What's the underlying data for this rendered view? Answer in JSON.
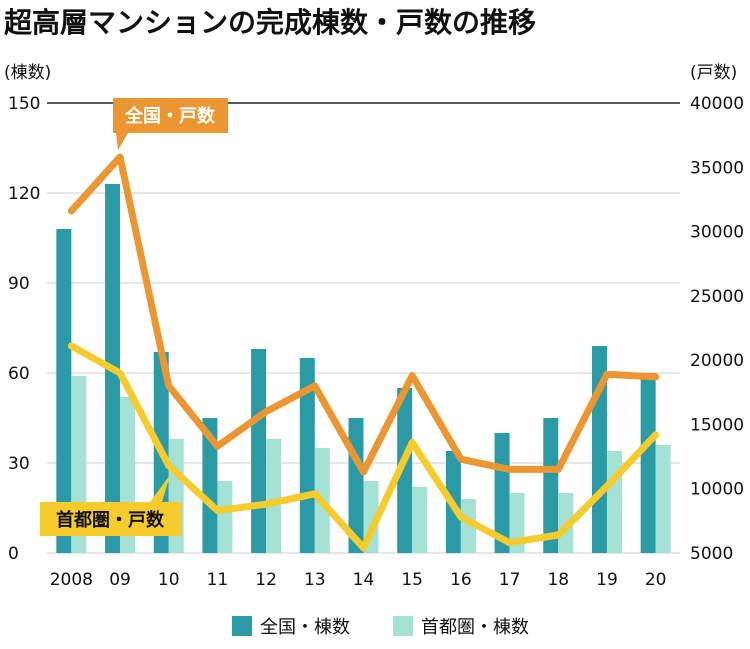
{
  "chart_data": {
    "type": "bar+line",
    "title": "超高層マンションの完成棟数・戸数の推移",
    "left_axis_label": "(棟数)",
    "right_axis_label": "(戸数)",
    "categories": [
      "2008",
      "09",
      "10",
      "11",
      "12",
      "13",
      "14",
      "15",
      "16",
      "17",
      "18",
      "19",
      "20"
    ],
    "left_ylim": [
      0,
      150
    ],
    "left_ticks": [
      0,
      30,
      60,
      90,
      120,
      150
    ],
    "right_ylim": [
      5000,
      40000
    ],
    "right_ticks": [
      5000,
      10000,
      15000,
      20000,
      25000,
      30000,
      35000,
      40000
    ],
    "bar_series": [
      {
        "name": "全国・棟数",
        "color": "#2a9ba6",
        "values": [
          108,
          123,
          67,
          45,
          68,
          65,
          45,
          55,
          34,
          40,
          45,
          69,
          60
        ]
      },
      {
        "name": "首都圏・棟数",
        "color": "#a3e2d5",
        "values": [
          59,
          52,
          38,
          24,
          38,
          35,
          24,
          22,
          18,
          20,
          20,
          34,
          36
        ]
      }
    ],
    "line_series": [
      {
        "name": "全国・戸数",
        "color": "#eb9630",
        "values": [
          31600,
          35800,
          18000,
          13300,
          16000,
          18000,
          11300,
          18800,
          12300,
          11500,
          11500,
          18900,
          18700
        ]
      },
      {
        "name": "首都圏・戸数",
        "color": "#f5cc2c",
        "values": [
          21100,
          19000,
          11800,
          8300,
          8800,
          9600,
          5400,
          13600,
          7800,
          5800,
          6400,
          10200,
          14200
        ]
      }
    ],
    "callouts": {
      "national_households": "全国・戸数",
      "metro_households": "首都圏・戸数"
    },
    "legend": [
      "全国・棟数",
      "首都圏・棟数"
    ]
  }
}
